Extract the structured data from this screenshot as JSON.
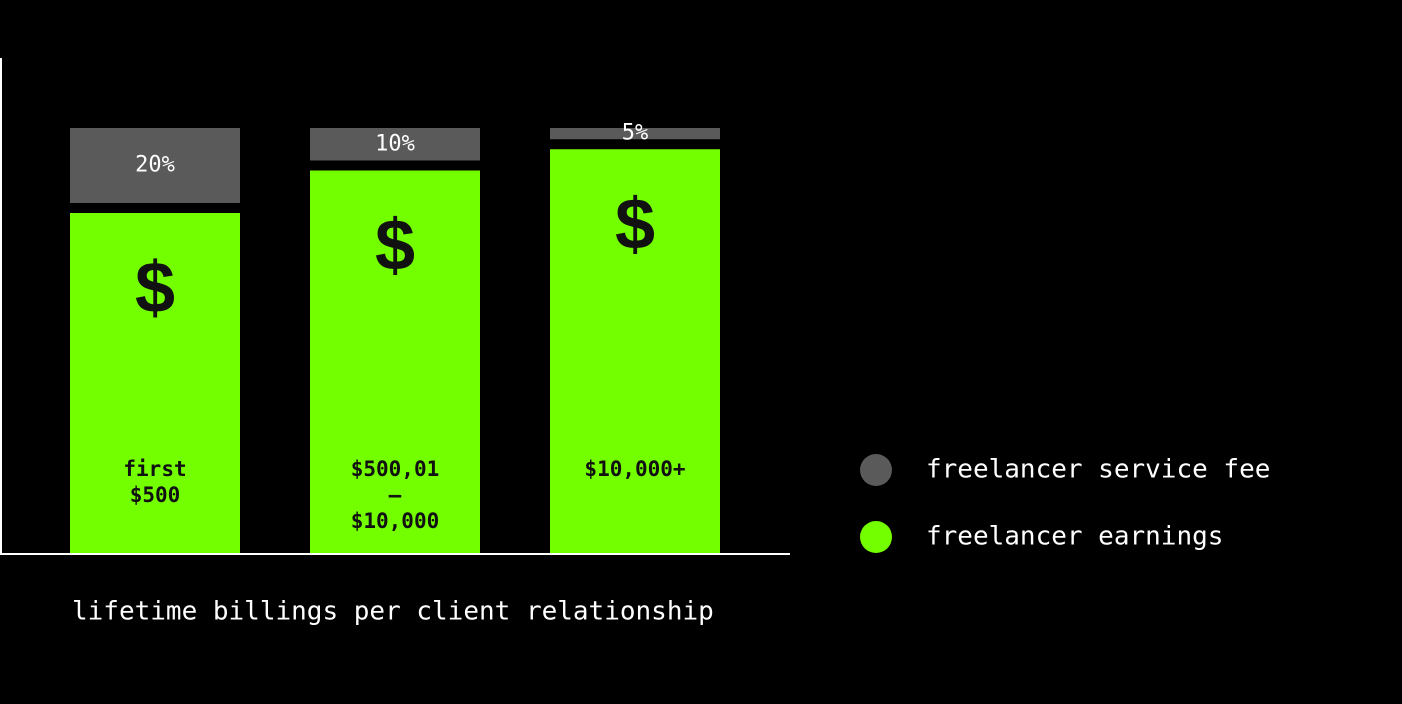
{
  "chart_data": {
    "type": "stacked-bar",
    "categories": [
      "first\n$500",
      "$500,01\n–\n$10,000",
      "$10,000+"
    ],
    "series": [
      {
        "name": "freelancer earnings",
        "color": "#74ff00",
        "values": [
          80,
          90,
          95
        ],
        "value_labels": [
          "$",
          "$",
          "$"
        ]
      },
      {
        "name": "freelancer service fee",
        "color": "#5a5a5a",
        "values": [
          20,
          10,
          5
        ],
        "value_labels": [
          "20%",
          "10%",
          "5%"
        ]
      }
    ],
    "ylim": [
      0,
      100
    ],
    "x_axis_label": "lifetime billings per client relationship",
    "legend": "right"
  }
}
